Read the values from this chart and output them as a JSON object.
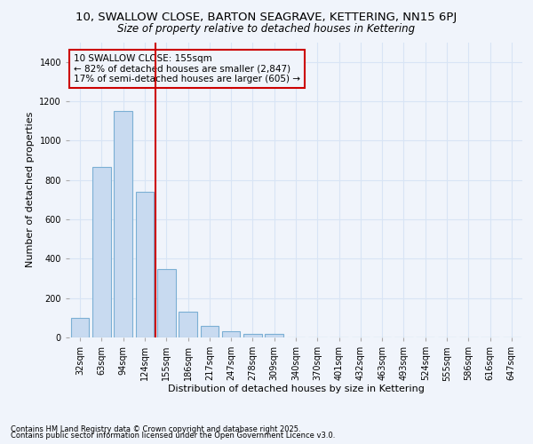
{
  "title": "10, SWALLOW CLOSE, BARTON SEAGRAVE, KETTERING, NN15 6PJ",
  "subtitle": "Size of property relative to detached houses in Kettering",
  "xlabel": "Distribution of detached houses by size in Kettering",
  "ylabel": "Number of detached properties",
  "footnote1": "Contains HM Land Registry data © Crown copyright and database right 2025.",
  "footnote2": "Contains public sector information licensed under the Open Government Licence v3.0.",
  "annotation_title": "10 SWALLOW CLOSE: 155sqm",
  "annotation_line1": "← 82% of detached houses are smaller (2,847)",
  "annotation_line2": "17% of semi-detached houses are larger (605) →",
  "categories": [
    "32sqm",
    "63sqm",
    "94sqm",
    "124sqm",
    "155sqm",
    "186sqm",
    "217sqm",
    "247sqm",
    "278sqm",
    "309sqm",
    "340sqm",
    "370sqm",
    "401sqm",
    "432sqm",
    "463sqm",
    "493sqm",
    "524sqm",
    "555sqm",
    "586sqm",
    "616sqm",
    "647sqm"
  ],
  "values": [
    100,
    865,
    1150,
    740,
    348,
    130,
    60,
    30,
    20,
    18,
    0,
    0,
    0,
    0,
    0,
    0,
    0,
    0,
    0,
    0,
    0
  ],
  "bar_color": "#c8daf0",
  "bar_edge_color": "#7bafd4",
  "vline_color": "#cc0000",
  "vline_x": 4,
  "bg_color": "#f0f4fb",
  "grid_color": "#d8e4f5",
  "title_fontsize": 9.5,
  "subtitle_fontsize": 8.5,
  "xlabel_fontsize": 8,
  "ylabel_fontsize": 8,
  "tick_fontsize": 7,
  "footnote_fontsize": 6,
  "annotation_fontsize": 7.5,
  "ylim": [
    0,
    1500
  ],
  "yticks": [
    0,
    200,
    400,
    600,
    800,
    1000,
    1200,
    1400
  ]
}
